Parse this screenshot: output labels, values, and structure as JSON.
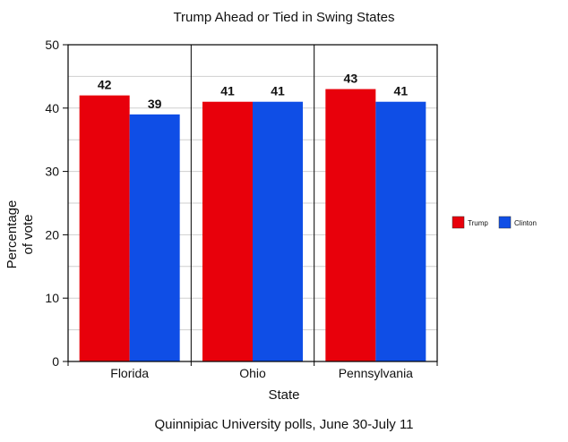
{
  "chart_data": {
    "type": "bar",
    "title": "Trump Ahead or Tied in Swing States",
    "xlabel": "State",
    "ylabel": [
      "Percentage",
      "of vote"
    ],
    "caption": "Quinnipiac University polls, June 30-July 11",
    "categories": [
      "Florida",
      "Ohio",
      "Pennsylvania"
    ],
    "series": [
      {
        "name": "Trump",
        "color": "#e8000b",
        "values": [
          42,
          41,
          43
        ]
      },
      {
        "name": "Clinton",
        "color": "#0f4ee6",
        "values": [
          39,
          41,
          41
        ]
      }
    ],
    "ylim": [
      0,
      50
    ],
    "yticks": [
      0,
      10,
      20,
      30,
      40,
      50
    ],
    "grid": true,
    "legend_position": "right"
  }
}
